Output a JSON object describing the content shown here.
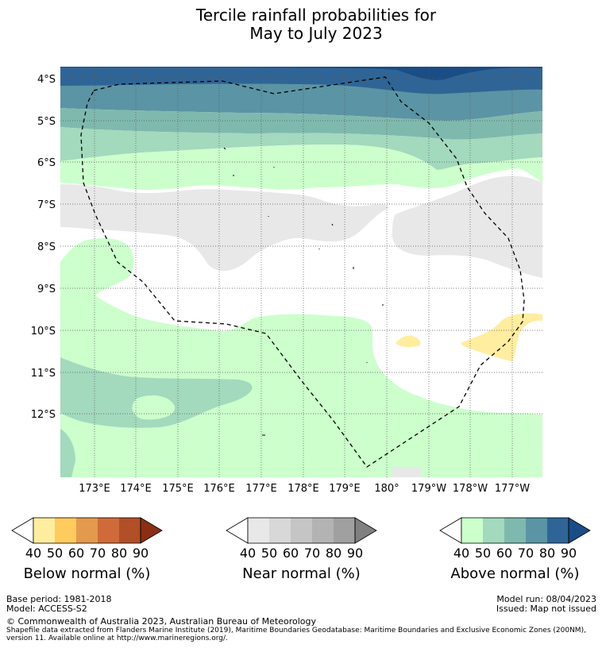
{
  "title_line1": "Tercile rainfall probabilities for",
  "title_line2": "May to July 2023",
  "map": {
    "lat_labels": [
      "4°S",
      "5°S",
      "6°S",
      "7°S",
      "8°S",
      "9°S",
      "10°S",
      "11°S",
      "12°S"
    ],
    "lon_labels": [
      "173°E",
      "174°E",
      "175°E",
      "176°E",
      "177°E",
      "178°E",
      "179°E",
      "180°",
      "179°W",
      "178°W",
      "177°W"
    ],
    "boundary": "Exclusive Economic Zone (dashed)"
  },
  "colorbars": [
    {
      "title": "Below normal (%)",
      "ticks": [
        "40",
        "50",
        "60",
        "70",
        "80",
        "90"
      ],
      "colors": [
        "#ffffff",
        "#ffeda0",
        "#fecc5c",
        "#e39a4d",
        "#cf6a3b",
        "#b04f28",
        "#8c2e14"
      ]
    },
    {
      "title": "Near normal (%)",
      "ticks": [
        "40",
        "50",
        "60",
        "70",
        "80",
        "90"
      ],
      "colors": [
        "#ffffff",
        "#e8e8e8",
        "#d8d8d8",
        "#c5c5c5",
        "#b3b3b3",
        "#a0a0a0",
        "#808080"
      ]
    },
    {
      "title": "Above normal (%)",
      "ticks": [
        "40",
        "50",
        "60",
        "70",
        "80",
        "90"
      ],
      "colors": [
        "#ffffff",
        "#ccffcc",
        "#a3d9bd",
        "#7fb9ae",
        "#5b94a4",
        "#2f6596",
        "#1a4d86"
      ]
    }
  ],
  "footer": {
    "base_period": "Base period: 1981-2018",
    "model": "Model: ACCESS-S2",
    "model_run": "Model run: 08/04/2023",
    "issued": "Issued: Map not issued",
    "copyright": "© Commonwealth of Australia 2023, Australian Bureau of Meteorology",
    "shapefile_line1": "Shapefile data extracted from Flanders Marine Institute (2019), Maritime Boundaries Geodatabase: Maritime Boundaries and Exclusive Economic Zones (200NM),",
    "shapefile_line2": "version 11. Available online at http://www.marineregions.org/."
  }
}
